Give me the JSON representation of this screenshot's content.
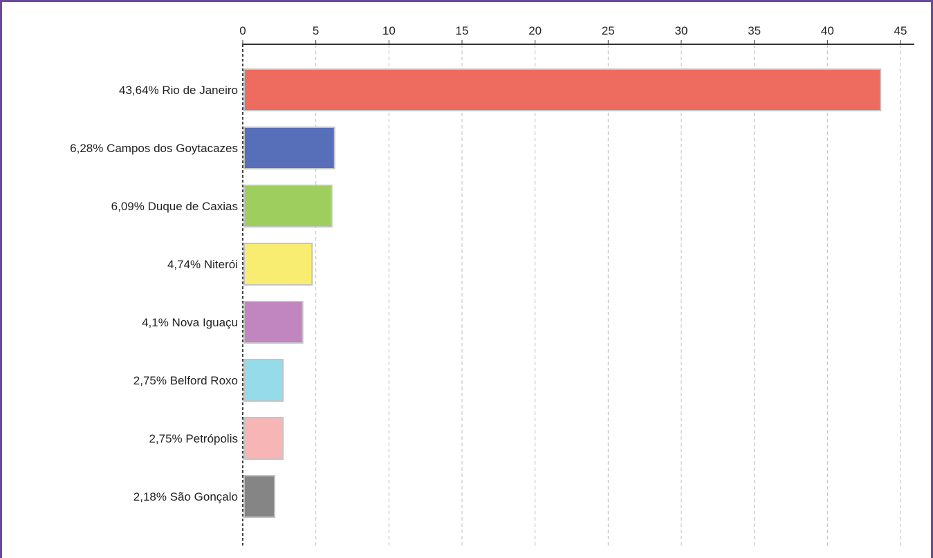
{
  "chart_data": {
    "type": "bar",
    "orientation": "horizontal",
    "categories": [
      "43,64% Rio de Janeiro",
      "6,28% Campos dos Goytacazes",
      "6,09% Duque de Caxias",
      "4,74% Niterói",
      "4,1% Nova Iguaçu",
      "2,75% Belford Roxo",
      "2,75% Petrópolis",
      "2,18% São Gonçalo"
    ],
    "values": [
      43.64,
      6.28,
      6.09,
      4.74,
      4.1,
      2.75,
      2.75,
      2.18
    ],
    "colors": [
      "#ee6b60",
      "#566fb8",
      "#9ecf5e",
      "#f8ec71",
      "#c185c0",
      "#96dbe9",
      "#f7b6b5",
      "#858585"
    ],
    "x_ticks": [
      "0",
      "5",
      "10",
      "15",
      "20",
      "25",
      "30",
      "35",
      "40",
      "45"
    ],
    "xlim": [
      0,
      45
    ],
    "axis_position": "top",
    "grid": "vertical dashed"
  }
}
